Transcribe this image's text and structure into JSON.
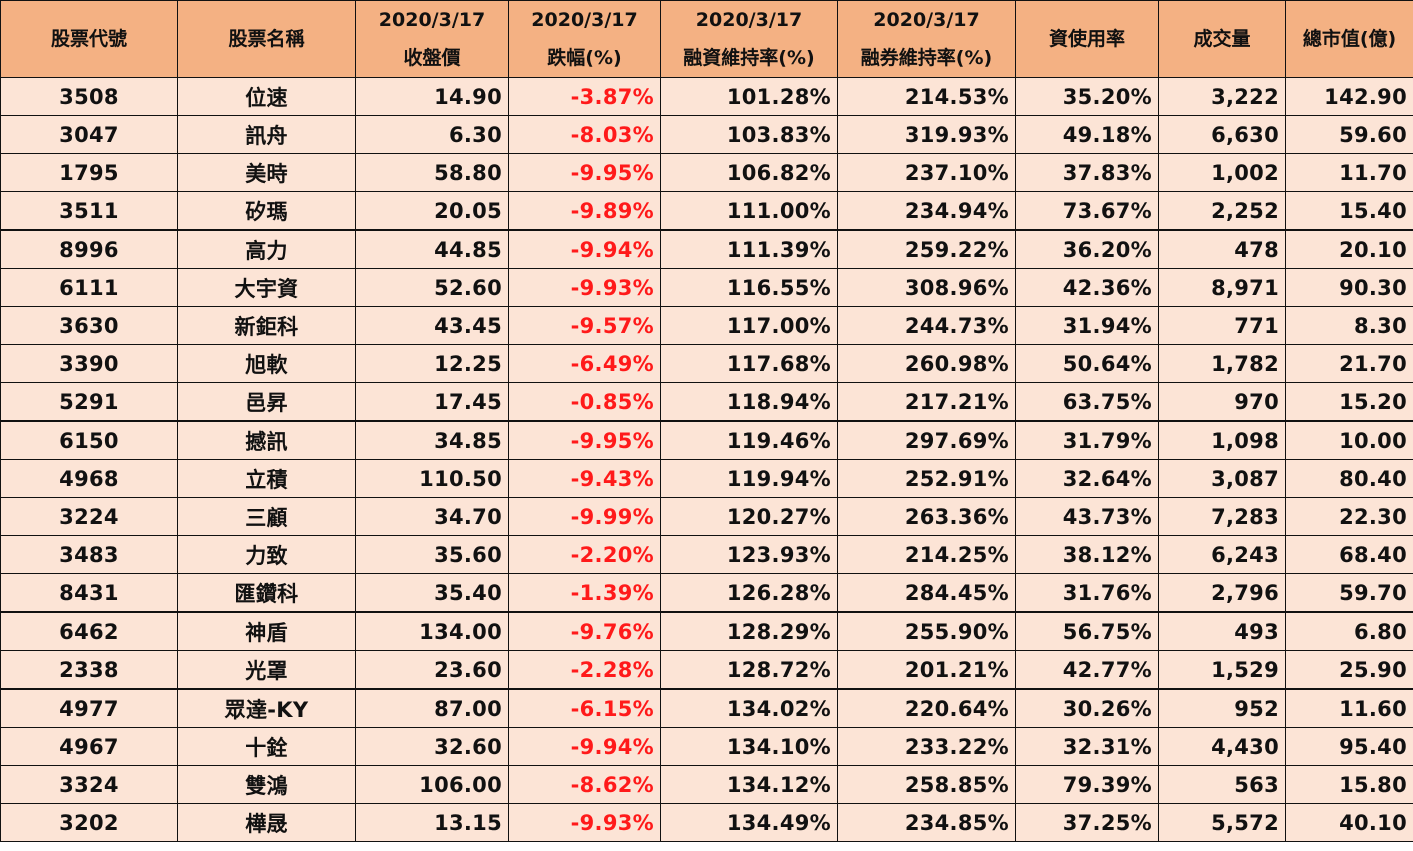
{
  "table": {
    "headers": [
      {
        "line1": "股票代號",
        "line2": ""
      },
      {
        "line1": "股票名稱",
        "line2": ""
      },
      {
        "line1": "2020/3/17",
        "line2": "收盤價"
      },
      {
        "line1": "2020/3/17",
        "line2": "跌幅(%)"
      },
      {
        "line1": "2020/3/17",
        "line2": "融資維持率(%)"
      },
      {
        "line1": "2020/3/17",
        "line2": "融券維持率(%)"
      },
      {
        "line1": "資使用率",
        "line2": ""
      },
      {
        "line1": "成交量",
        "line2": ""
      },
      {
        "line1": "總市值(億)",
        "line2": ""
      }
    ],
    "colors": {
      "header_bg": "#f4b183",
      "row_bg": "#fce4d6",
      "negative": "#ff1a1a",
      "border": "#111111"
    },
    "rows": [
      [
        "3508",
        "位速",
        "14.90",
        "-3.87%",
        "101.28%",
        "214.53%",
        "35.20%",
        "3,222",
        "142.90"
      ],
      [
        "3047",
        "訊舟",
        "6.30",
        "-8.03%",
        "103.83%",
        "319.93%",
        "49.18%",
        "6,630",
        "59.60"
      ],
      [
        "1795",
        "美時",
        "58.80",
        "-9.95%",
        "106.82%",
        "237.10%",
        "37.83%",
        "1,002",
        "11.70"
      ],
      [
        "3511",
        "矽瑪",
        "20.05",
        "-9.89%",
        "111.00%",
        "234.94%",
        "73.67%",
        "2,252",
        "15.40"
      ],
      [
        "8996",
        "高力",
        "44.85",
        "-9.94%",
        "111.39%",
        "259.22%",
        "36.20%",
        "478",
        "20.10"
      ],
      [
        "6111",
        "大宇資",
        "52.60",
        "-9.93%",
        "116.55%",
        "308.96%",
        "42.36%",
        "8,971",
        "90.30"
      ],
      [
        "3630",
        "新鉅科",
        "43.45",
        "-9.57%",
        "117.00%",
        "244.73%",
        "31.94%",
        "771",
        "8.30"
      ],
      [
        "3390",
        "旭軟",
        "12.25",
        "-6.49%",
        "117.68%",
        "260.98%",
        "50.64%",
        "1,782",
        "21.70"
      ],
      [
        "5291",
        "邑昇",
        "17.45",
        "-0.85%",
        "118.94%",
        "217.21%",
        "63.75%",
        "970",
        "15.20"
      ],
      [
        "6150",
        "撼訊",
        "34.85",
        "-9.95%",
        "119.46%",
        "297.69%",
        "31.79%",
        "1,098",
        "10.00"
      ],
      [
        "4968",
        "立積",
        "110.50",
        "-9.43%",
        "119.94%",
        "252.91%",
        "32.64%",
        "3,087",
        "80.40"
      ],
      [
        "3224",
        "三顧",
        "34.70",
        "-9.99%",
        "120.27%",
        "263.36%",
        "43.73%",
        "7,283",
        "22.30"
      ],
      [
        "3483",
        "力致",
        "35.60",
        "-2.20%",
        "123.93%",
        "214.25%",
        "38.12%",
        "6,243",
        "68.40"
      ],
      [
        "8431",
        "匯鑽科",
        "35.40",
        "-1.39%",
        "126.28%",
        "284.45%",
        "31.76%",
        "2,796",
        "59.70"
      ],
      [
        "6462",
        "神盾",
        "134.00",
        "-9.76%",
        "128.29%",
        "255.90%",
        "56.75%",
        "493",
        "6.80"
      ],
      [
        "2338",
        "光罩",
        "23.60",
        "-2.28%",
        "128.72%",
        "201.21%",
        "42.77%",
        "1,529",
        "25.90"
      ],
      [
        "4977",
        "眾達-KY",
        "87.00",
        "-6.15%",
        "134.02%",
        "220.64%",
        "30.26%",
        "952",
        "11.60"
      ],
      [
        "4967",
        "十銓",
        "32.60",
        "-9.94%",
        "134.10%",
        "233.22%",
        "32.31%",
        "4,430",
        "95.40"
      ],
      [
        "3324",
        "雙鴻",
        "106.00",
        "-8.62%",
        "134.12%",
        "258.85%",
        "79.39%",
        "563",
        "15.80"
      ],
      [
        "3202",
        "樺晟",
        "13.15",
        "-9.93%",
        "134.49%",
        "234.85%",
        "37.25%",
        "5,572",
        "40.10"
      ]
    ]
  }
}
